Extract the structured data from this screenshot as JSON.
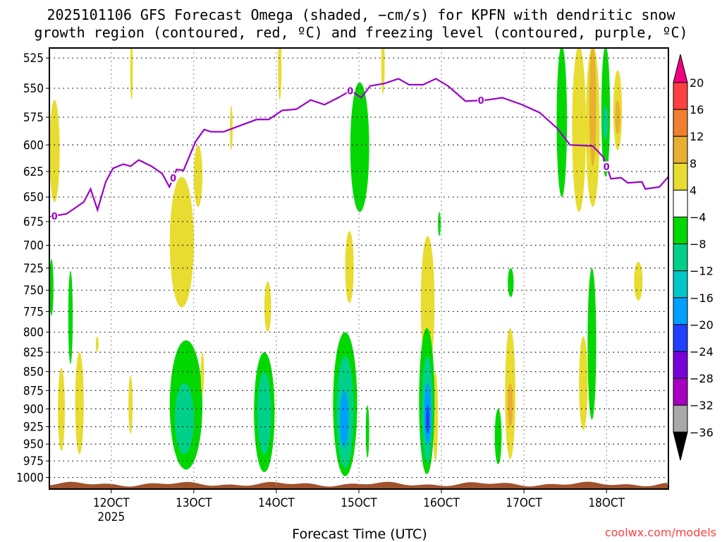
{
  "chart_data": {
    "type": "heatmap",
    "title_lines": [
      "2025101106 GFS Forecast Omega (shaded, −cm/s) for KPFN with dendritic snow",
      "growth region (contoured, red, ºC) and freezing level (contoured, purple, ºC)"
    ],
    "xlabel": "Forecast Time (UTC)",
    "credit": "coolwx.com/models",
    "x_units": "forecast hour",
    "xlim": [
      0,
      180
    ],
    "x_ticks": [
      {
        "hour": 18,
        "label": "12OCT",
        "sublabel": "2025"
      },
      {
        "hour": 42,
        "label": "13OCT"
      },
      {
        "hour": 66,
        "label": "14OCT"
      },
      {
        "hour": 90,
        "label": "15OCT"
      },
      {
        "hour": 114,
        "label": "16OCT"
      },
      {
        "hour": 138,
        "label": "17OCT"
      },
      {
        "hour": 162,
        "label": "18OCT"
      }
    ],
    "y_units": "hPa",
    "ylim": [
      517,
      1018
    ],
    "y_scale": "log",
    "y_ticks": [
      525,
      550,
      575,
      600,
      625,
      650,
      675,
      700,
      725,
      750,
      775,
      800,
      825,
      850,
      875,
      900,
      925,
      950,
      975,
      1000
    ],
    "grid": true,
    "colorbar": {
      "levels": [
        20,
        16,
        12,
        8,
        4,
        -4,
        -8,
        -12,
        -16,
        -20,
        -24,
        -28,
        -32,
        -36
      ],
      "labels": [
        "20",
        "16",
        "12",
        "8",
        "4",
        "−4",
        "−8",
        "−12",
        "−16",
        "−20",
        "−24",
        "−28",
        "−32",
        "−36"
      ],
      "colors": [
        "#ff4040",
        "#f08030",
        "#e8b030",
        "#e8dc30",
        "#ffffff",
        "#00d800",
        "#00d08a",
        "#00c8c8",
        "#00a0ff",
        "#2040ff",
        "#7800d8",
        "#a800c0",
        "#a8a8a8"
      ],
      "over_color": "#f00080",
      "under_color": "#000000"
    },
    "freezing_level": {
      "label": "0",
      "color": "#9a00c8",
      "label_hours": [
        1.5,
        36,
        87.5,
        125.5,
        162
      ],
      "hours": [
        0,
        5,
        10,
        12,
        14,
        16.4,
        18.5,
        21.5,
        23.6,
        26,
        29.7,
        32.8,
        34.9,
        37,
        39,
        42.5,
        45,
        47,
        50.7,
        55,
        60.3,
        63.8,
        67.7,
        71.8,
        76,
        80,
        84,
        87.6,
        90.7,
        93.3,
        97.4,
        101.5,
        104.6,
        108.7,
        112.4,
        115.9,
        121,
        127.2,
        131.7,
        137.4,
        142.6,
        147.7,
        151.4,
        158,
        161,
        163.3,
        166.2,
        168.2,
        172.3,
        173.3,
        177.4,
        180
      ],
      "pressure": [
        670,
        667,
        655,
        642,
        663,
        635,
        622,
        618,
        620,
        614,
        620,
        627,
        640,
        623,
        624,
        597,
        586,
        588,
        588,
        583,
        577,
        577,
        569,
        568,
        560,
        564,
        558,
        552,
        558,
        548,
        546,
        542,
        547,
        547,
        542,
        548,
        561,
        560,
        558,
        564,
        571,
        585,
        600,
        601,
        611,
        632,
        631,
        636,
        635,
        642,
        640,
        630
      ]
    },
    "omega_regions": [
      {
        "t0": 0,
        "t1": 3,
        "p0": 560,
        "p1": 655,
        "value": 6
      },
      {
        "t0": 0,
        "t1": 1.2,
        "p0": 715,
        "p1": 780,
        "value": -6
      },
      {
        "t0": 5.5,
        "t1": 6.8,
        "p0": 728,
        "p1": 840,
        "value": -6
      },
      {
        "t0": 2.5,
        "t1": 4.5,
        "p0": 845,
        "p1": 960,
        "value": 6
      },
      {
        "t0": 7.5,
        "t1": 10,
        "p0": 825,
        "p1": 965,
        "value": 6
      },
      {
        "t0": 13.5,
        "t1": 14.3,
        "p0": 805,
        "p1": 825,
        "value": 6
      },
      {
        "t0": 23,
        "t1": 24.2,
        "p0": 855,
        "p1": 935,
        "value": 6
      },
      {
        "t0": 23.5,
        "t1": 24.3,
        "p0": 510,
        "p1": 560,
        "value": 6
      },
      {
        "t0": 35,
        "t1": 42,
        "p0": 630,
        "p1": 770,
        "value": 6
      },
      {
        "t0": 42,
        "t1": 44.5,
        "p0": 600,
        "p1": 660,
        "value": 6
      },
      {
        "t0": 35,
        "t1": 44.5,
        "p0": 810,
        "p1": 988,
        "value": -6
      },
      {
        "t0": 36.5,
        "t1": 42,
        "p0": 865,
        "p1": 965,
        "value": -10
      },
      {
        "t0": 44,
        "t1": 45,
        "p0": 825,
        "p1": 880,
        "value": 6
      },
      {
        "t0": 52.5,
        "t1": 53.3,
        "p0": 565,
        "p1": 605,
        "value": 6
      },
      {
        "t0": 62.5,
        "t1": 64.5,
        "p0": 740,
        "p1": 800,
        "value": 6
      },
      {
        "t0": 59.5,
        "t1": 65.5,
        "p0": 825,
        "p1": 992,
        "value": -6
      },
      {
        "t0": 60.5,
        "t1": 64.5,
        "p0": 850,
        "p1": 965,
        "value": -12
      },
      {
        "t0": 66.5,
        "t1": 67.5,
        "p0": 505,
        "p1": 560,
        "value": 6
      },
      {
        "t0": 86,
        "t1": 88.5,
        "p0": 685,
        "p1": 765,
        "value": 6
      },
      {
        "t0": 82.5,
        "t1": 89.5,
        "p0": 800,
        "p1": 998,
        "value": -6
      },
      {
        "t0": 83.5,
        "t1": 88.5,
        "p0": 830,
        "p1": 985,
        "value": -12
      },
      {
        "t0": 84.5,
        "t1": 87,
        "p0": 875,
        "p1": 955,
        "value": -18
      },
      {
        "t0": 87.5,
        "t1": 93,
        "p0": 545,
        "p1": 665,
        "value": -6
      },
      {
        "t0": 92,
        "t1": 93,
        "p0": 895,
        "p1": 970,
        "value": -6
      },
      {
        "t0": 96.5,
        "t1": 97.5,
        "p0": 505,
        "p1": 555,
        "value": 6
      },
      {
        "t0": 108,
        "t1": 112,
        "p0": 690,
        "p1": 850,
        "value": 6
      },
      {
        "t0": 111.5,
        "t1": 113,
        "p0": 850,
        "p1": 975,
        "value": 6
      },
      {
        "t0": 107.5,
        "t1": 112,
        "p0": 795,
        "p1": 995,
        "value": -6
      },
      {
        "t0": 108.3,
        "t1": 111.5,
        "p0": 830,
        "p1": 978,
        "value": -12
      },
      {
        "t0": 109,
        "t1": 111,
        "p0": 865,
        "p1": 950,
        "value": -18
      },
      {
        "t0": 109.5,
        "t1": 110.5,
        "p0": 895,
        "p1": 935,
        "value": -22
      },
      {
        "t0": 113,
        "t1": 113.8,
        "p0": 665,
        "p1": 690,
        "value": -6
      },
      {
        "t0": 129.5,
        "t1": 131.5,
        "p0": 900,
        "p1": 980,
        "value": -6
      },
      {
        "t0": 132.5,
        "t1": 135.5,
        "p0": 795,
        "p1": 972,
        "value": 6
      },
      {
        "t0": 133.2,
        "t1": 134.8,
        "p0": 865,
        "p1": 925,
        "value": 10
      },
      {
        "t0": 133.3,
        "t1": 135,
        "p0": 725,
        "p1": 758,
        "value": -6
      },
      {
        "t0": 147.5,
        "t1": 150.5,
        "p0": 515,
        "p1": 650,
        "value": -6
      },
      {
        "t0": 152,
        "t1": 156,
        "p0": 515,
        "p1": 665,
        "value": 6
      },
      {
        "t0": 154,
        "t1": 156.5,
        "p0": 805,
        "p1": 930,
        "value": 6
      },
      {
        "t0": 156,
        "t1": 160,
        "p0": 515,
        "p1": 660,
        "value": 6
      },
      {
        "t0": 157,
        "t1": 159,
        "p0": 515,
        "p1": 620,
        "value": 10
      },
      {
        "t0": 156.5,
        "t1": 159,
        "p0": 725,
        "p1": 915,
        "value": -6
      },
      {
        "t0": 160.5,
        "t1": 163,
        "p0": 515,
        "p1": 630,
        "value": -6
      },
      {
        "t0": 161,
        "t1": 162.5,
        "p0": 565,
        "p1": 595,
        "value": -12
      },
      {
        "t0": 164,
        "t1": 166.5,
        "p0": 535,
        "p1": 605,
        "value": 6
      },
      {
        "t0": 164.5,
        "t1": 166,
        "p0": 560,
        "p1": 590,
        "value": 10
      },
      {
        "t0": 170,
        "t1": 172.5,
        "p0": 718,
        "p1": 762,
        "value": 6
      }
    ]
  }
}
